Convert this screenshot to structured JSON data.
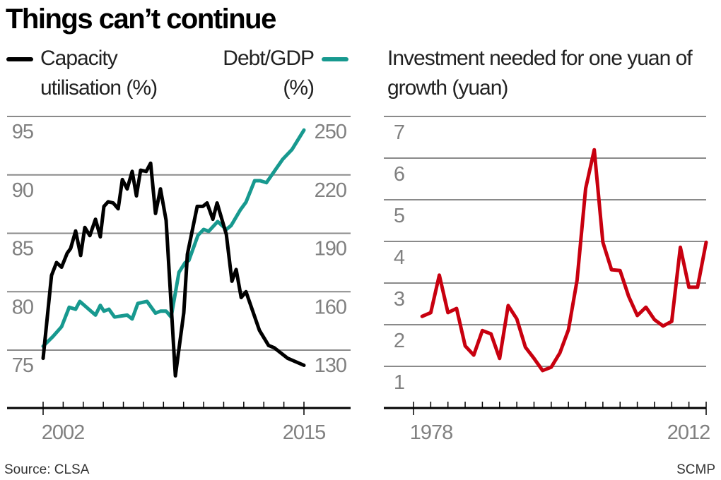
{
  "title": "Things can’t continue",
  "source": "Source: CLSA",
  "credit": "SCMP",
  "colors": {
    "capacity": "#000000",
    "debt": "#17998f",
    "investment": "#c8000f",
    "grid": "#8a8a8a",
    "tick_text": "#808080"
  },
  "chart_data": [
    {
      "type": "line",
      "title": "",
      "xlim": [
        2002,
        2015
      ],
      "x_tick_labels": [
        "2002",
        "2015"
      ],
      "grid": true,
      "left_axis": {
        "label": "Capacity utilisation (%)",
        "ylim": [
          75,
          95
        ],
        "ticks": [
          "95",
          "90",
          "85",
          "80",
          "75"
        ]
      },
      "right_axis": {
        "label": "Debt/GDP (%)",
        "ylim": [
          130,
          250
        ],
        "ticks": [
          "250",
          "220",
          "190",
          "160",
          "130"
        ]
      },
      "series": [
        {
          "name": "Capacity utilisation (%)",
          "axis": "left",
          "x": [
            2002.0,
            2002.42,
            2002.67,
            2002.92,
            2003.2,
            2003.37,
            2003.62,
            2003.87,
            2004.08,
            2004.33,
            2004.61,
            2004.85,
            2005.03,
            2005.24,
            2005.49,
            2005.74,
            2005.95,
            2006.19,
            2006.44,
            2006.65,
            2006.86,
            2007.14,
            2007.36,
            2007.6,
            2007.85,
            2008.13,
            2008.59,
            2009.01,
            2009.19,
            2009.68,
            2009.96,
            2010.17,
            2010.46,
            2010.67,
            2011.13,
            2011.41,
            2011.62,
            2011.87,
            2012.11,
            2012.78,
            2013.24,
            2013.52,
            2014.19,
            2015.0
          ],
          "y": [
            74.3,
            81.4,
            82.5,
            82.1,
            83.3,
            83.7,
            85.2,
            83.1,
            85.5,
            84.8,
            86.2,
            84.7,
            87.3,
            87.7,
            87.6,
            87.1,
            89.6,
            88.8,
            90.3,
            88.2,
            90.4,
            90.3,
            91.0,
            86.7,
            88.8,
            86.1,
            72.8,
            78.2,
            83.2,
            87.3,
            87.3,
            87.6,
            86.2,
            87.6,
            84.9,
            80.9,
            81.9,
            79.5,
            80.0,
            76.7,
            75.4,
            75.2,
            74.3,
            73.7
          ]
        },
        {
          "name": "Debt/GDP (%)",
          "axis": "right",
          "x": [
            2002.0,
            2002.49,
            2002.92,
            2003.3,
            2003.62,
            2003.83,
            2004.61,
            2004.85,
            2005.03,
            2005.28,
            2005.56,
            2006.19,
            2006.44,
            2006.72,
            2007.18,
            2007.6,
            2007.85,
            2008.13,
            2008.38,
            2008.77,
            2009.08,
            2009.26,
            2009.72,
            2010.0,
            2010.25,
            2010.7,
            2011.13,
            2011.37,
            2011.83,
            2012.11,
            2012.54,
            2012.82,
            2013.13,
            2013.94,
            2014.4,
            2015.0
          ],
          "y": [
            132,
            137,
            142,
            152,
            151,
            155,
            148,
            153,
            150,
            151,
            147,
            148,
            146,
            154,
            155,
            149,
            150,
            150,
            147,
            170,
            175,
            176,
            189,
            192,
            191,
            196,
            192,
            194,
            202,
            206,
            217,
            217,
            216,
            228,
            233,
            243
          ]
        }
      ]
    },
    {
      "type": "line",
      "title": "Investment needed for one yuan of growth (yuan)",
      "xlim": [
        1978,
        2012
      ],
      "x_tick_labels": [
        "1978",
        "2012"
      ],
      "ylim": [
        1,
        7
      ],
      "y_ticks": [
        "7",
        "6",
        "5",
        "4",
        "3",
        "2",
        "1"
      ],
      "grid": true,
      "series": [
        {
          "x": [
            1979,
            1980,
            1981,
            1982,
            1983,
            1984,
            1985,
            1986,
            1987,
            1988,
            1989,
            1990,
            1991,
            1992,
            1993,
            1994,
            1995,
            1996,
            1997,
            1998,
            1999,
            2000,
            2001,
            2002,
            2003,
            2004,
            2005,
            2006,
            2007,
            2008,
            2009,
            2010,
            2011,
            2012
          ],
          "y": [
            2.2,
            2.29,
            3.19,
            2.29,
            2.39,
            1.49,
            1.27,
            1.86,
            1.78,
            1.19,
            2.46,
            2.14,
            1.46,
            1.19,
            0.9,
            0.98,
            1.32,
            1.88,
            3.07,
            5.27,
            6.2,
            3.98,
            3.32,
            3.3,
            2.68,
            2.22,
            2.42,
            2.12,
            1.97,
            2.08,
            3.86,
            2.9,
            2.9,
            3.98
          ]
        }
      ]
    }
  ]
}
